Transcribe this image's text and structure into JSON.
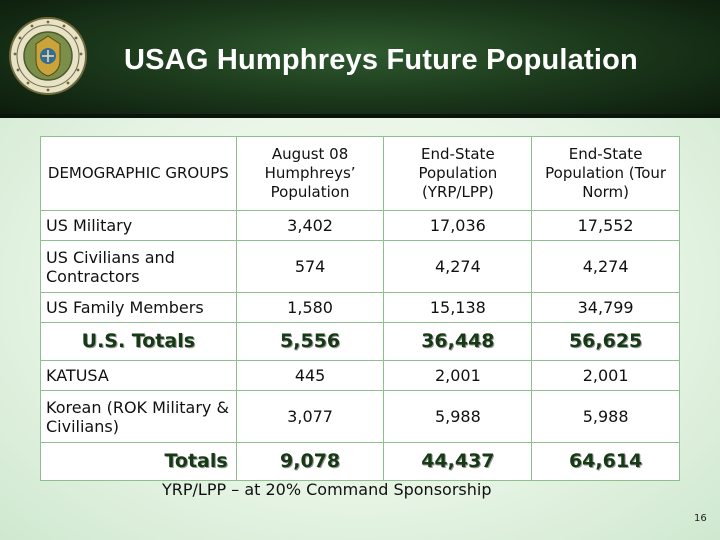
{
  "slide": {
    "title": "USAG Humphreys Future Population",
    "footnote": "YRP/LPP – at 20% Command Sponsorship",
    "page_number": "16"
  },
  "seal": {
    "icon": "commissary-agency-seal-icon",
    "lettering": "DEFENSE COMMISSARY AGENCY"
  },
  "table": {
    "headers": [
      "DEMOGRAPHIC GROUPS",
      "August 08 Humphreys’ Population",
      "End-State Population (YRP/LPP)",
      "End-State Population (Tour Norm)"
    ],
    "rows": [
      {
        "label": "US Military",
        "values": [
          "3,402",
          "17,036",
          "17,552"
        ]
      },
      {
        "label": "US Civilians and Contractors",
        "values": [
          "574",
          "4,274",
          "4,274"
        ]
      },
      {
        "label": "US Family Members",
        "values": [
          "1,580",
          "15,138",
          "34,799"
        ]
      },
      {
        "label": "U.S. Totals",
        "values": [
          "5,556",
          "36,448",
          "56,625"
        ],
        "total": true
      },
      {
        "label": "KATUSA",
        "values": [
          "445",
          "2,001",
          "2,001"
        ]
      },
      {
        "label": "Korean (ROK Military & Civilians)",
        "values": [
          "3,077",
          "5,988",
          "5,988"
        ]
      },
      {
        "label": "Totals",
        "values": [
          "9,078",
          "44,437",
          "64,614"
        ],
        "total": true
      }
    ]
  },
  "colors": {
    "header_dark": "#0b1a0b",
    "header_mid": "#2f5a2f",
    "table_border": "#8fbf8f",
    "total_text": "#163a16"
  }
}
